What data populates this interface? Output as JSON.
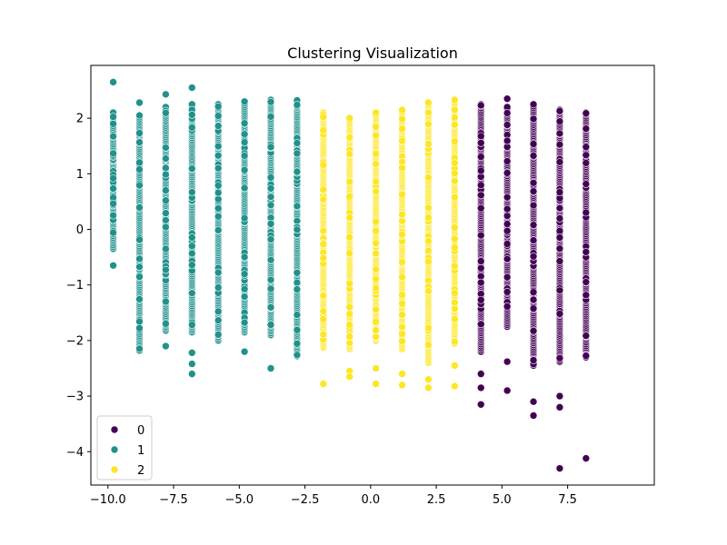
{
  "chart_data": {
    "type": "scatter",
    "title": "Clustering Visualization",
    "xlabel": "",
    "ylabel": "",
    "xlim": [
      -10.65,
      10.8
    ],
    "ylim": [
      -4.6,
      2.95
    ],
    "x_ticks": [
      -10.0,
      -7.5,
      -5.0,
      -2.5,
      0.0,
      2.5,
      5.0,
      7.5
    ],
    "x_tick_labels": [
      "−10.0",
      "−7.5",
      "−5.0",
      "−2.5",
      "0.0",
      "2.5",
      "5.0",
      "7.5"
    ],
    "y_ticks": [
      2,
      1,
      0,
      -1,
      -2,
      -3,
      -4
    ],
    "y_tick_labels": [
      "2",
      "1",
      "0",
      "−1",
      "−2",
      "−3",
      "−4"
    ],
    "grid": false,
    "legend_position": "lower-left",
    "colors": {
      "0": "#440154",
      "1": "#21918c",
      "2": "#fde725"
    },
    "series": [
      {
        "name": "0",
        "color": "#440154",
        "columns": [
          {
            "x": 4.2,
            "y_min": -2.2,
            "y_max": 2.25,
            "outliers": [
              -2.6,
              -2.85,
              -3.15
            ]
          },
          {
            "x": 5.2,
            "y_min": -1.75,
            "y_max": 2.2,
            "outliers": [
              2.35,
              -2.38,
              -2.9
            ]
          },
          {
            "x": 6.2,
            "y_min": -2.45,
            "y_max": 2.25,
            "outliers": [
              -3.1,
              -3.35
            ]
          },
          {
            "x": 7.2,
            "y_min": -2.38,
            "y_max": 2.15,
            "outliers": [
              -3.0,
              -3.2,
              -4.3
            ]
          },
          {
            "x": 8.2,
            "y_min": -2.3,
            "y_max": 2.1,
            "outliers": [
              -4.12
            ]
          }
        ]
      },
      {
        "name": "1",
        "color": "#21918c",
        "columns": [
          {
            "x": -9.8,
            "y_min": -0.35,
            "y_max": 2.1,
            "outliers": [
              2.65,
              -0.65
            ]
          },
          {
            "x": -8.8,
            "y_min": -2.18,
            "y_max": 2.05,
            "outliers": [
              2.28
            ]
          },
          {
            "x": -7.8,
            "y_min": -1.82,
            "y_max": 2.2,
            "outliers": [
              2.43,
              -2.1
            ]
          },
          {
            "x": -6.8,
            "y_min": -1.85,
            "y_max": 2.25,
            "outliers": [
              2.55,
              -2.22,
              -2.42,
              -2.6
            ]
          },
          {
            "x": -5.8,
            "y_min": -2.0,
            "y_max": 2.25,
            "outliers": []
          },
          {
            "x": -4.8,
            "y_min": -1.85,
            "y_max": 2.3,
            "outliers": [
              -2.2
            ]
          },
          {
            "x": -3.8,
            "y_min": -1.9,
            "y_max": 2.33,
            "outliers": [
              -2.5
            ]
          },
          {
            "x": -2.8,
            "y_min": -2.28,
            "y_max": 2.32,
            "outliers": []
          }
        ]
      },
      {
        "name": "2",
        "color": "#fde725",
        "columns": [
          {
            "x": -1.8,
            "y_min": -2.12,
            "y_max": 2.1,
            "outliers": [
              -2.78
            ]
          },
          {
            "x": -0.8,
            "y_min": -2.15,
            "y_max": 2.0,
            "outliers": [
              -2.55,
              -2.65
            ]
          },
          {
            "x": 0.2,
            "y_min": -2.0,
            "y_max": 2.1,
            "outliers": [
              -2.5,
              -2.78
            ]
          },
          {
            "x": 1.2,
            "y_min": -2.15,
            "y_max": 2.15,
            "outliers": [
              -2.6,
              -2.8
            ]
          },
          {
            "x": 2.2,
            "y_min": -2.4,
            "y_max": 2.28,
            "outliers": [
              -2.7,
              -2.85
            ]
          },
          {
            "x": 3.2,
            "y_min": -2.05,
            "y_max": 2.33,
            "outliers": [
              -2.45,
              -2.82
            ]
          }
        ]
      }
    ]
  }
}
